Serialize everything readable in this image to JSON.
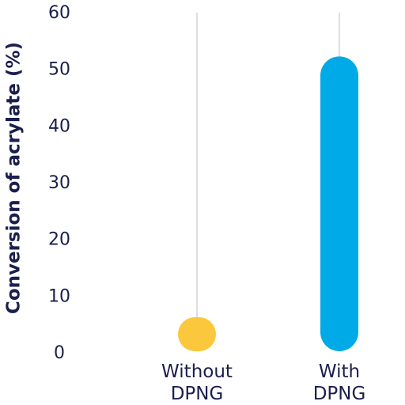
{
  "chart_data": {
    "type": "bar",
    "ylabel": "Conversion of acrylate (%)",
    "categories": [
      "Without DPNG",
      "With DPNG"
    ],
    "values": [
      6,
      52
    ],
    "colors": [
      "#fbc73c",
      "#00aae7"
    ],
    "ylim": [
      0,
      60
    ],
    "yticks": [
      0,
      10,
      20,
      30,
      40,
      50,
      60
    ],
    "grid": true
  }
}
